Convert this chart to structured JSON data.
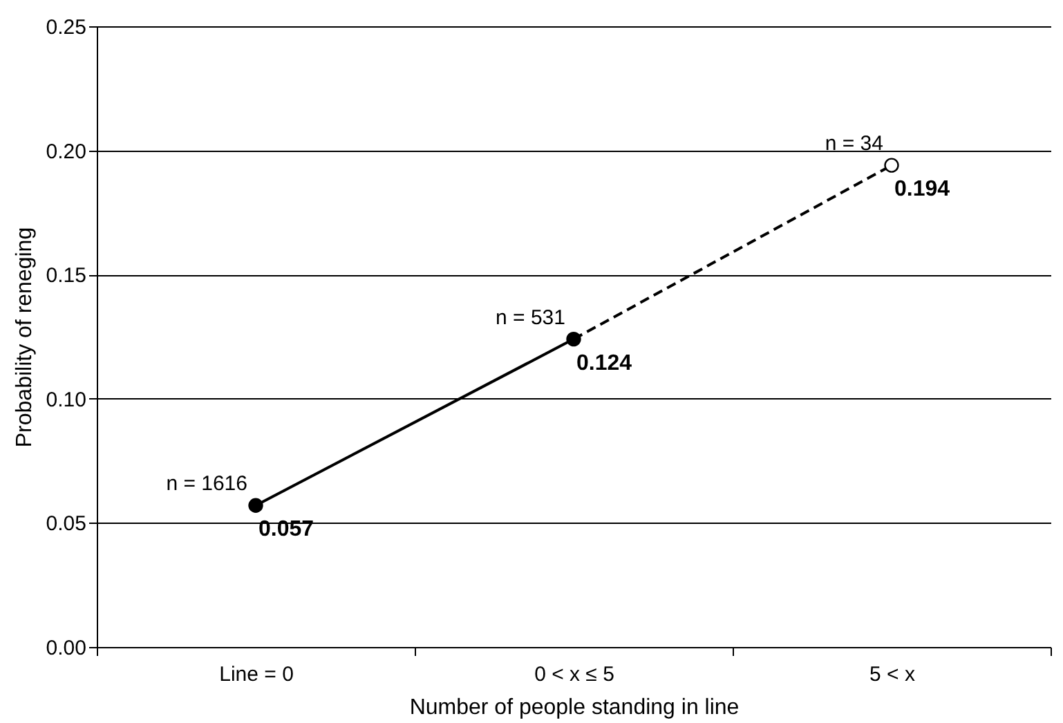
{
  "chart_data": {
    "type": "line",
    "xlabel": "Number of people standing in line",
    "ylabel": "Probability of reneging",
    "categories": [
      "Line = 0",
      "0 < x ≤ 5",
      "5 < x"
    ],
    "series": [
      {
        "color": "#000000",
        "values": [
          0.057,
          0.124,
          null
        ],
        "value_labels": [
          "0.057",
          "0.124",
          null
        ],
        "line_style": "solid",
        "marker": "circle"
      },
      {
        "color": "#000000",
        "values": [
          null,
          0.124,
          0.194
        ],
        "line_style": "dashed",
        "marker": "none"
      },
      {
        "type": "scatter",
        "color": "#ffffff",
        "values": [
          null,
          null,
          0.194
        ],
        "value_labels": [
          null,
          null,
          "0.194"
        ],
        "marker": "circle"
      }
    ],
    "annotations": [
      {
        "text": "n = 1616",
        "x": "Line = 0",
        "y": 0.057
      },
      {
        "text": "n = 531",
        "x": "0 < x ≤ 5",
        "y": 0.124
      },
      {
        "text": "n = 34",
        "x": "5 < x",
        "y": 0.194
      }
    ],
    "ylim": [
      0,
      0.25
    ],
    "yticks": [
      {
        "value": 0,
        "label": "0.00"
      },
      {
        "value": 0.05,
        "label": "0.05"
      },
      {
        "value": 0.1,
        "label": "0.10"
      },
      {
        "value": 0.15,
        "label": "0.15"
      },
      {
        "value": 0.2,
        "label": "0.20"
      },
      {
        "value": 0.25,
        "label": "0.25"
      }
    ],
    "grid": "y"
  }
}
